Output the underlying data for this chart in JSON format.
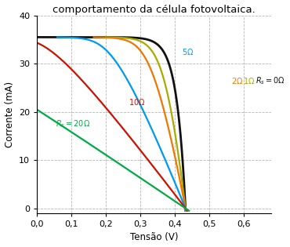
{
  "title": "comportamento da célula fotovoltaica.",
  "xlabel": "Tensão (V)",
  "ylabel": "Corrente (mA)",
  "xlim": [
    0,
    0.68
  ],
  "ylim": [
    -1,
    40
  ],
  "yticks": [
    0,
    10,
    20,
    30,
    40
  ],
  "xticks": [
    0,
    0.1,
    0.2,
    0.3,
    0.4,
    0.5,
    0.6
  ],
  "Iph": 35.5,
  "I0": 2e-06,
  "n": 1.0,
  "T": 300,
  "series_resistances": [
    0,
    1,
    2,
    5,
    10,
    20
  ],
  "colors": [
    "#111111",
    "#aaaa00",
    "#ee7700",
    "#0099ee",
    "#cc1100",
    "#00aa44"
  ],
  "background_color": "#ffffff",
  "grid_color": "#aaaaaa",
  "title_fontsize": 9.5,
  "axis_fontsize": 8.5,
  "tick_fontsize": 8
}
